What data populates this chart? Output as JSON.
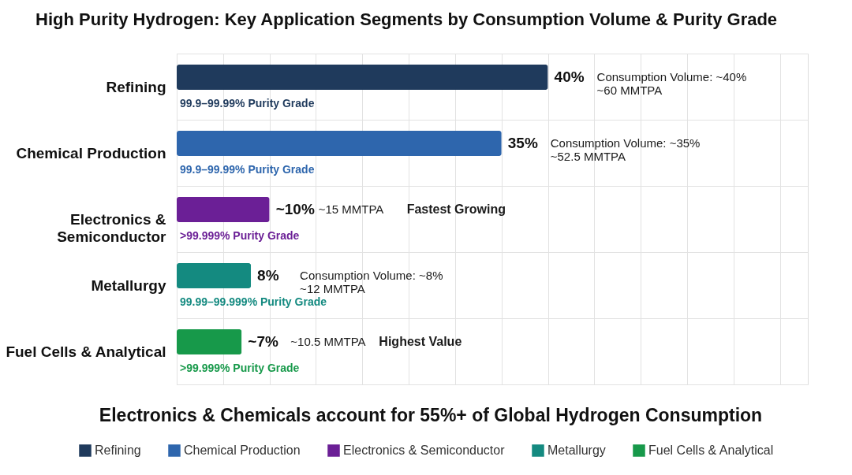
{
  "chart_data": {
    "type": "bar",
    "orientation": "horizontal",
    "stacked": true,
    "title": "High Purity Hydrogen: Key Application Segments by Consumption Volume & Purity Grade",
    "categories": [
      "Refining",
      "Chemical Production",
      "Electronics & Semiconductor",
      "Metallurgy",
      "Fuel Cells & Analytical"
    ],
    "series": [
      {
        "name": "Refining",
        "color": "#1f3a5c",
        "values": [
          40,
          null,
          null,
          null,
          null
        ],
        "value_labels": [
          "40%",
          null,
          null,
          null,
          null
        ]
      },
      {
        "name": "Chemical Production",
        "color": "#2e66ad",
        "values": [
          null,
          35,
          null,
          null,
          null
        ],
        "value_labels": [
          null,
          "35%",
          null,
          null,
          null
        ]
      },
      {
        "name": "Electronics & Semiconductor",
        "color": "#6b1f96",
        "values": [
          null,
          null,
          10,
          null,
          null
        ],
        "value_labels": [
          null,
          null,
          "~10%",
          null,
          null
        ]
      },
      {
        "name": "Metallurgy",
        "color": "#148a80",
        "values": [
          null,
          null,
          null,
          8,
          null
        ],
        "value_labels": [
          null,
          null,
          null,
          "8%",
          null
        ]
      },
      {
        "name": "Fuel Cells & Analytical",
        "color": "#17994a",
        "values": [
          null,
          null,
          null,
          null,
          7
        ],
        "value_labels": [
          null,
          null,
          null,
          null,
          "~7%"
        ]
      }
    ],
    "annotations": [
      "Electronics & Chemicals account for 55%+ of Global Hydrogen Consumption",
      {
        "text": "99.9–99.99% Purity Grade",
        "y": "Refining"
      },
      "Consumption Volume: ~40%\n~60 MMTPA",
      {
        "text": "99.9–99.99% Purity Grade",
        "y": "Chemical Production"
      },
      "Consumption Volume: ~35%\n~52.5 MMTPA",
      {
        "text": ">99.999% Purity Grade",
        "y": "Electronics & Semiconductor"
      },
      "~15 MMTPA",
      "Fastest Growing",
      {
        "text": "99.99–99.999% Purity Grade",
        "y": "Metallurgy"
      },
      "Consumption Volume: ~8%\n~12 MMTPA",
      {
        "text": ">99.999% Purity Grade",
        "y": "Fuel Cells & Analytical"
      },
      "~10.5 MMTPA",
      "Highest Value"
    ],
    "grid": true,
    "legend": "bottom",
    "tick_labels": "y"
  }
}
